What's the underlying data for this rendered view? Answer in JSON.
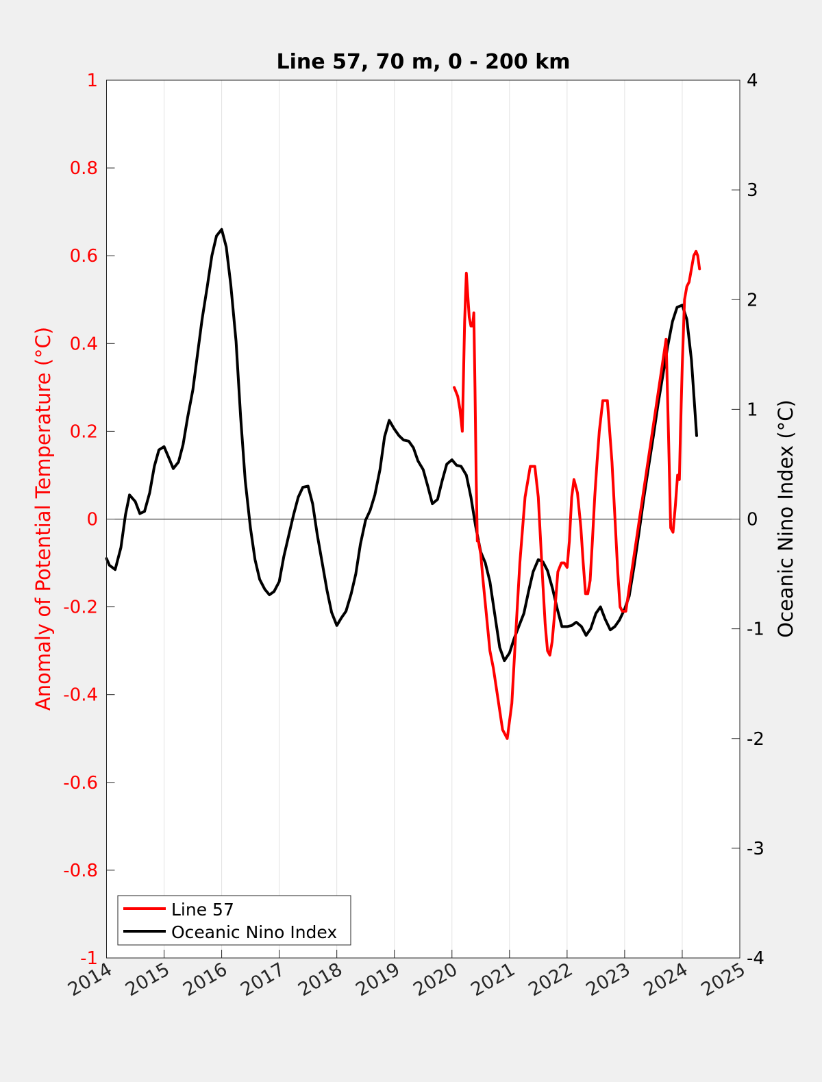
{
  "chart_data": {
    "type": "line",
    "title": "Line 57, 70 m, 0 - 200 km",
    "xlabel": "",
    "ylabel_left": "Anomaly of Potential Temperature (°C)",
    "ylabel_right": "Oceanic Nino Index (°C)",
    "xlim": [
      2014,
      2025
    ],
    "ylim_left": [
      -1,
      1
    ],
    "ylim_right": [
      -4,
      4
    ],
    "x_ticks": [
      "2014",
      "2015",
      "2016",
      "2017",
      "2018",
      "2019",
      "2020",
      "2021",
      "2022",
      "2023",
      "2024",
      "2025"
    ],
    "y_ticks_left": [
      "1",
      "0.8",
      "0.6",
      "0.4",
      "0.2",
      "0",
      "-0.2",
      "-0.4",
      "-0.6",
      "-0.8",
      "-1"
    ],
    "y_ticks_right": [
      "4",
      "3",
      "2",
      "1",
      "0",
      "-1",
      "-2",
      "-3",
      "-4"
    ],
    "grid": "vertical-x",
    "legend_position": "bottom-left",
    "colors": {
      "line57": "#ff0000",
      "oni": "#000000",
      "left_axis": "#ff0000",
      "right_axis": "#000000"
    },
    "series": [
      {
        "name": "Line 57",
        "axis": "left",
        "color": "#ff0000",
        "x": [
          2020.04,
          2020.1,
          2020.14,
          2020.18,
          2020.22,
          2020.25,
          2020.28,
          2020.3,
          2020.33,
          2020.36,
          2020.38,
          2020.4,
          2020.42,
          2020.44,
          2020.46,
          2020.5,
          2020.54,
          2020.6,
          2020.66,
          2020.72,
          2020.8,
          2020.88,
          2020.96,
          2021.04,
          2021.1,
          2021.18,
          2021.27,
          2021.36,
          2021.44,
          2021.5,
          2021.54,
          2021.58,
          2021.62,
          2021.66,
          2021.7,
          2021.74,
          2021.78,
          2021.84,
          2021.9,
          2021.95,
          2022.0,
          2022.04,
          2022.08,
          2022.12,
          2022.18,
          2022.24,
          2022.28,
          2022.32,
          2022.36,
          2022.4,
          2022.44,
          2022.48,
          2022.52,
          2022.56,
          2022.62,
          2022.7,
          2022.78,
          2022.84,
          2022.88,
          2022.92,
          2022.96,
          2023.0,
          2023.02,
          2023.72,
          2023.76,
          2023.8,
          2023.84,
          2023.88,
          2023.92,
          2023.95,
          2023.97,
          2024.0,
          2024.04,
          2024.08,
          2024.12,
          2024.16,
          2024.2,
          2024.24,
          2024.27,
          2024.3
        ],
        "values": [
          0.3,
          0.28,
          0.25,
          0.2,
          0.45,
          0.56,
          0.5,
          0.46,
          0.44,
          0.44,
          0.47,
          0.3,
          0.1,
          -0.05,
          -0.05,
          -0.08,
          -0.14,
          -0.22,
          -0.3,
          -0.34,
          -0.41,
          -0.48,
          -0.5,
          -0.42,
          -0.28,
          -0.1,
          0.05,
          0.12,
          0.12,
          0.05,
          -0.05,
          -0.15,
          -0.24,
          -0.3,
          -0.31,
          -0.28,
          -0.22,
          -0.12,
          -0.1,
          -0.1,
          -0.11,
          -0.05,
          0.05,
          0.09,
          0.06,
          -0.02,
          -0.1,
          -0.17,
          -0.17,
          -0.14,
          -0.05,
          0.05,
          0.13,
          0.2,
          0.27,
          0.27,
          0.13,
          -0.02,
          -0.12,
          -0.2,
          -0.21,
          -0.21,
          -0.21,
          0.41,
          0.2,
          -0.02,
          -0.03,
          0.03,
          0.1,
          0.09,
          0.2,
          0.35,
          0.5,
          0.53,
          0.54,
          0.57,
          0.6,
          0.61,
          0.6,
          0.57
        ]
      },
      {
        "name": "Oceanic Nino Index",
        "axis": "right",
        "color": "#000000",
        "x": [
          2014.0,
          2014.05,
          2014.15,
          2014.25,
          2014.33,
          2014.4,
          2014.5,
          2014.58,
          2014.66,
          2014.75,
          2014.83,
          2014.91,
          2015.0,
          2015.08,
          2015.16,
          2015.25,
          2015.33,
          2015.41,
          2015.5,
          2015.58,
          2015.66,
          2015.75,
          2015.83,
          2015.91,
          2016.0,
          2016.08,
          2016.16,
          2016.25,
          2016.33,
          2016.41,
          2016.5,
          2016.58,
          2016.66,
          2016.75,
          2016.83,
          2016.91,
          2017.0,
          2017.08,
          2017.16,
          2017.25,
          2017.33,
          2017.41,
          2017.5,
          2017.58,
          2017.66,
          2017.75,
          2017.83,
          2017.91,
          2018.0,
          2018.08,
          2018.16,
          2018.25,
          2018.33,
          2018.41,
          2018.5,
          2018.58,
          2018.66,
          2018.75,
          2018.83,
          2018.91,
          2019.0,
          2019.08,
          2019.16,
          2019.25,
          2019.33,
          2019.41,
          2019.5,
          2019.58,
          2019.66,
          2019.75,
          2019.83,
          2019.91,
          2020.0,
          2020.08,
          2020.16,
          2020.25,
          2020.33,
          2020.41,
          2020.5,
          2020.58,
          2020.66,
          2020.75,
          2020.83,
          2020.91,
          2021.0,
          2021.08,
          2021.16,
          2021.25,
          2021.33,
          2021.41,
          2021.5,
          2021.58,
          2021.66,
          2021.75,
          2021.83,
          2021.91,
          2022.0,
          2022.08,
          2022.16,
          2022.25,
          2022.33,
          2022.41,
          2022.5,
          2022.58,
          2022.66,
          2022.75,
          2022.83,
          2022.91,
          2023.0,
          2023.08,
          2023.16,
          2023.25,
          2023.33,
          2023.41,
          2023.5,
          2023.58,
          2023.66,
          2023.75,
          2023.83,
          2023.91,
          2024.0,
          2024.08,
          2024.16,
          2024.25
        ],
        "values": [
          -0.36,
          -0.42,
          -0.46,
          -0.26,
          0.04,
          0.22,
          0.16,
          0.05,
          0.07,
          0.24,
          0.48,
          0.63,
          0.66,
          0.56,
          0.46,
          0.52,
          0.68,
          0.93,
          1.18,
          1.5,
          1.82,
          2.12,
          2.4,
          2.58,
          2.64,
          2.48,
          2.13,
          1.62,
          0.93,
          0.35,
          -0.08,
          -0.37,
          -0.55,
          -0.64,
          -0.69,
          -0.66,
          -0.57,
          -0.34,
          -0.16,
          0.04,
          0.2,
          0.29,
          0.3,
          0.14,
          -0.14,
          -0.41,
          -0.65,
          -0.85,
          -0.97,
          -0.9,
          -0.84,
          -0.68,
          -0.5,
          -0.23,
          -0.01,
          0.08,
          0.22,
          0.45,
          0.75,
          0.9,
          0.82,
          0.76,
          0.72,
          0.71,
          0.65,
          0.53,
          0.45,
          0.3,
          0.14,
          0.18,
          0.35,
          0.5,
          0.54,
          0.49,
          0.48,
          0.4,
          0.2,
          -0.06,
          -0.3,
          -0.4,
          -0.57,
          -0.89,
          -1.17,
          -1.29,
          -1.22,
          -1.09,
          -0.98,
          -0.86,
          -0.66,
          -0.48,
          -0.37,
          -0.39,
          -0.47,
          -0.64,
          -0.82,
          -0.98,
          -0.98,
          -0.97,
          -0.94,
          -0.98,
          -1.06,
          -1.0,
          -0.86,
          -0.8,
          -0.91,
          -1.01,
          -0.98,
          -0.92,
          -0.82,
          -0.7,
          -0.44,
          -0.12,
          0.18,
          0.46,
          0.76,
          1.05,
          1.3,
          1.58,
          1.8,
          1.93,
          1.95,
          1.82,
          1.45,
          0.76
        ]
      }
    ]
  }
}
